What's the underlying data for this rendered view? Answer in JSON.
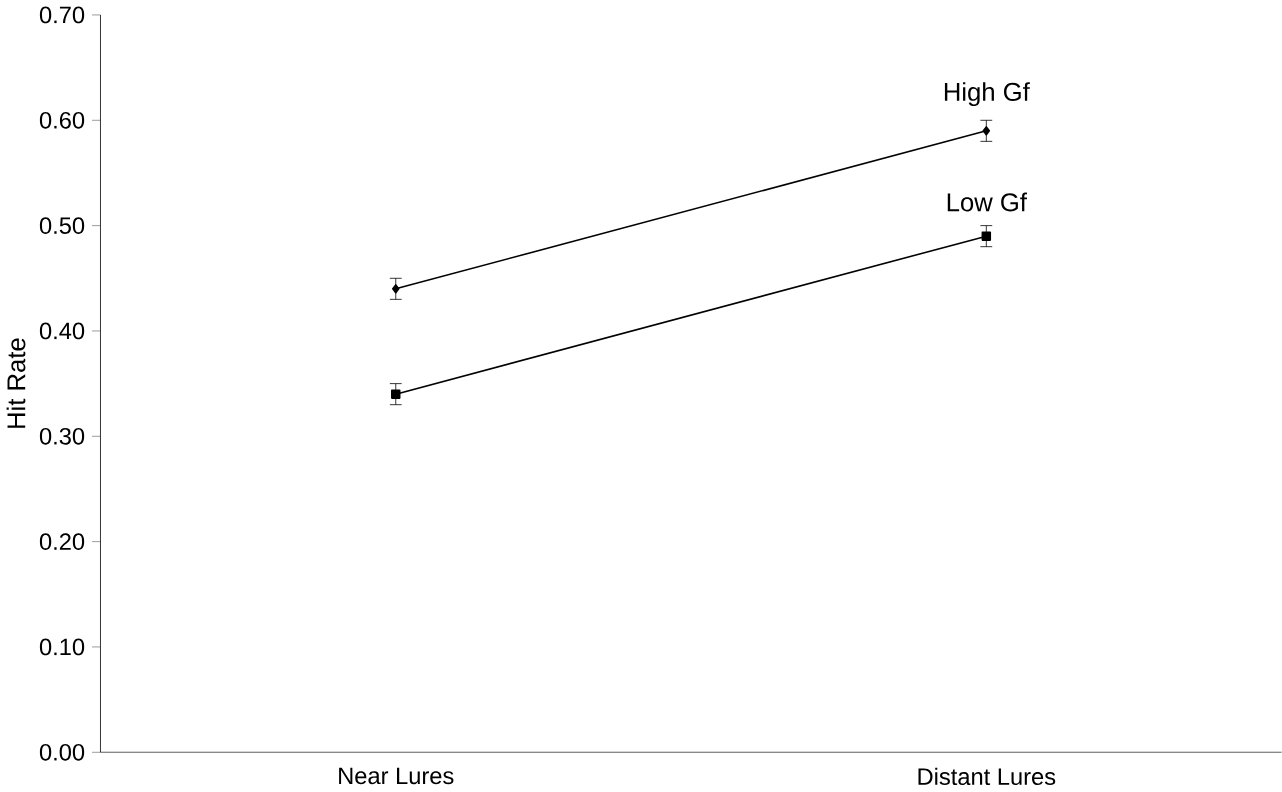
{
  "chart_data": {
    "type": "line",
    "ylabel": "Hit Rate",
    "categories": [
      "Near Lures",
      "Distant Lures"
    ],
    "series": [
      {
        "name": "High Gf",
        "color": "#000000",
        "marker": "diamond",
        "values": [
          0.44,
          0.59
        ],
        "errors": [
          0.01,
          0.01
        ]
      },
      {
        "name": "Low Gf",
        "color": "#000000",
        "marker": "square",
        "values": [
          0.34,
          0.49
        ],
        "errors": [
          0.01,
          0.01
        ]
      }
    ],
    "ylim": [
      0,
      0.7
    ],
    "yticks": [
      {
        "value": 0,
        "label": "0.00"
      },
      {
        "value": 0.1,
        "label": "0.10"
      },
      {
        "value": 0.2,
        "label": "0.20"
      },
      {
        "value": 0.3,
        "label": "0.30"
      },
      {
        "value": 0.4,
        "label": "0.40"
      },
      {
        "value": 0.5,
        "label": "0.50"
      },
      {
        "value": 0.6,
        "label": "0.60"
      },
      {
        "value": 0.7,
        "label": "0.70"
      }
    ],
    "grid": false,
    "legend": false,
    "line_style": "solid"
  }
}
